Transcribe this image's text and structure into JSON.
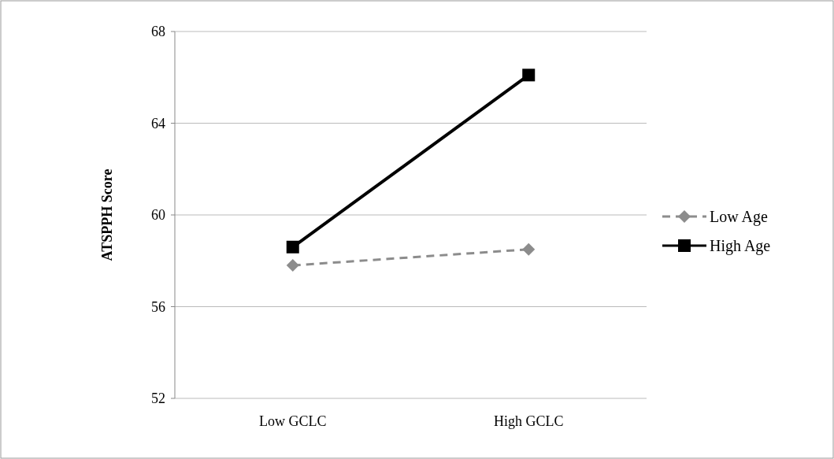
{
  "chart_data": {
    "type": "line",
    "ylabel": "ATSPPH Score",
    "categories": [
      "Low GCLC",
      "High GCLC"
    ],
    "ylim": [
      52,
      68
    ],
    "yticks": [
      52,
      56,
      60,
      64,
      68
    ],
    "grid": "y",
    "legend": "right",
    "series": [
      {
        "name": "Low Age",
        "color": "#8c8c8c",
        "values": [
          57.8,
          58.5
        ],
        "marker": "diamond",
        "line_style": "dashed"
      },
      {
        "name": "High Age",
        "color": "#000000",
        "values": [
          58.6,
          66.1
        ],
        "marker": "square",
        "line_style": "solid"
      }
    ]
  }
}
